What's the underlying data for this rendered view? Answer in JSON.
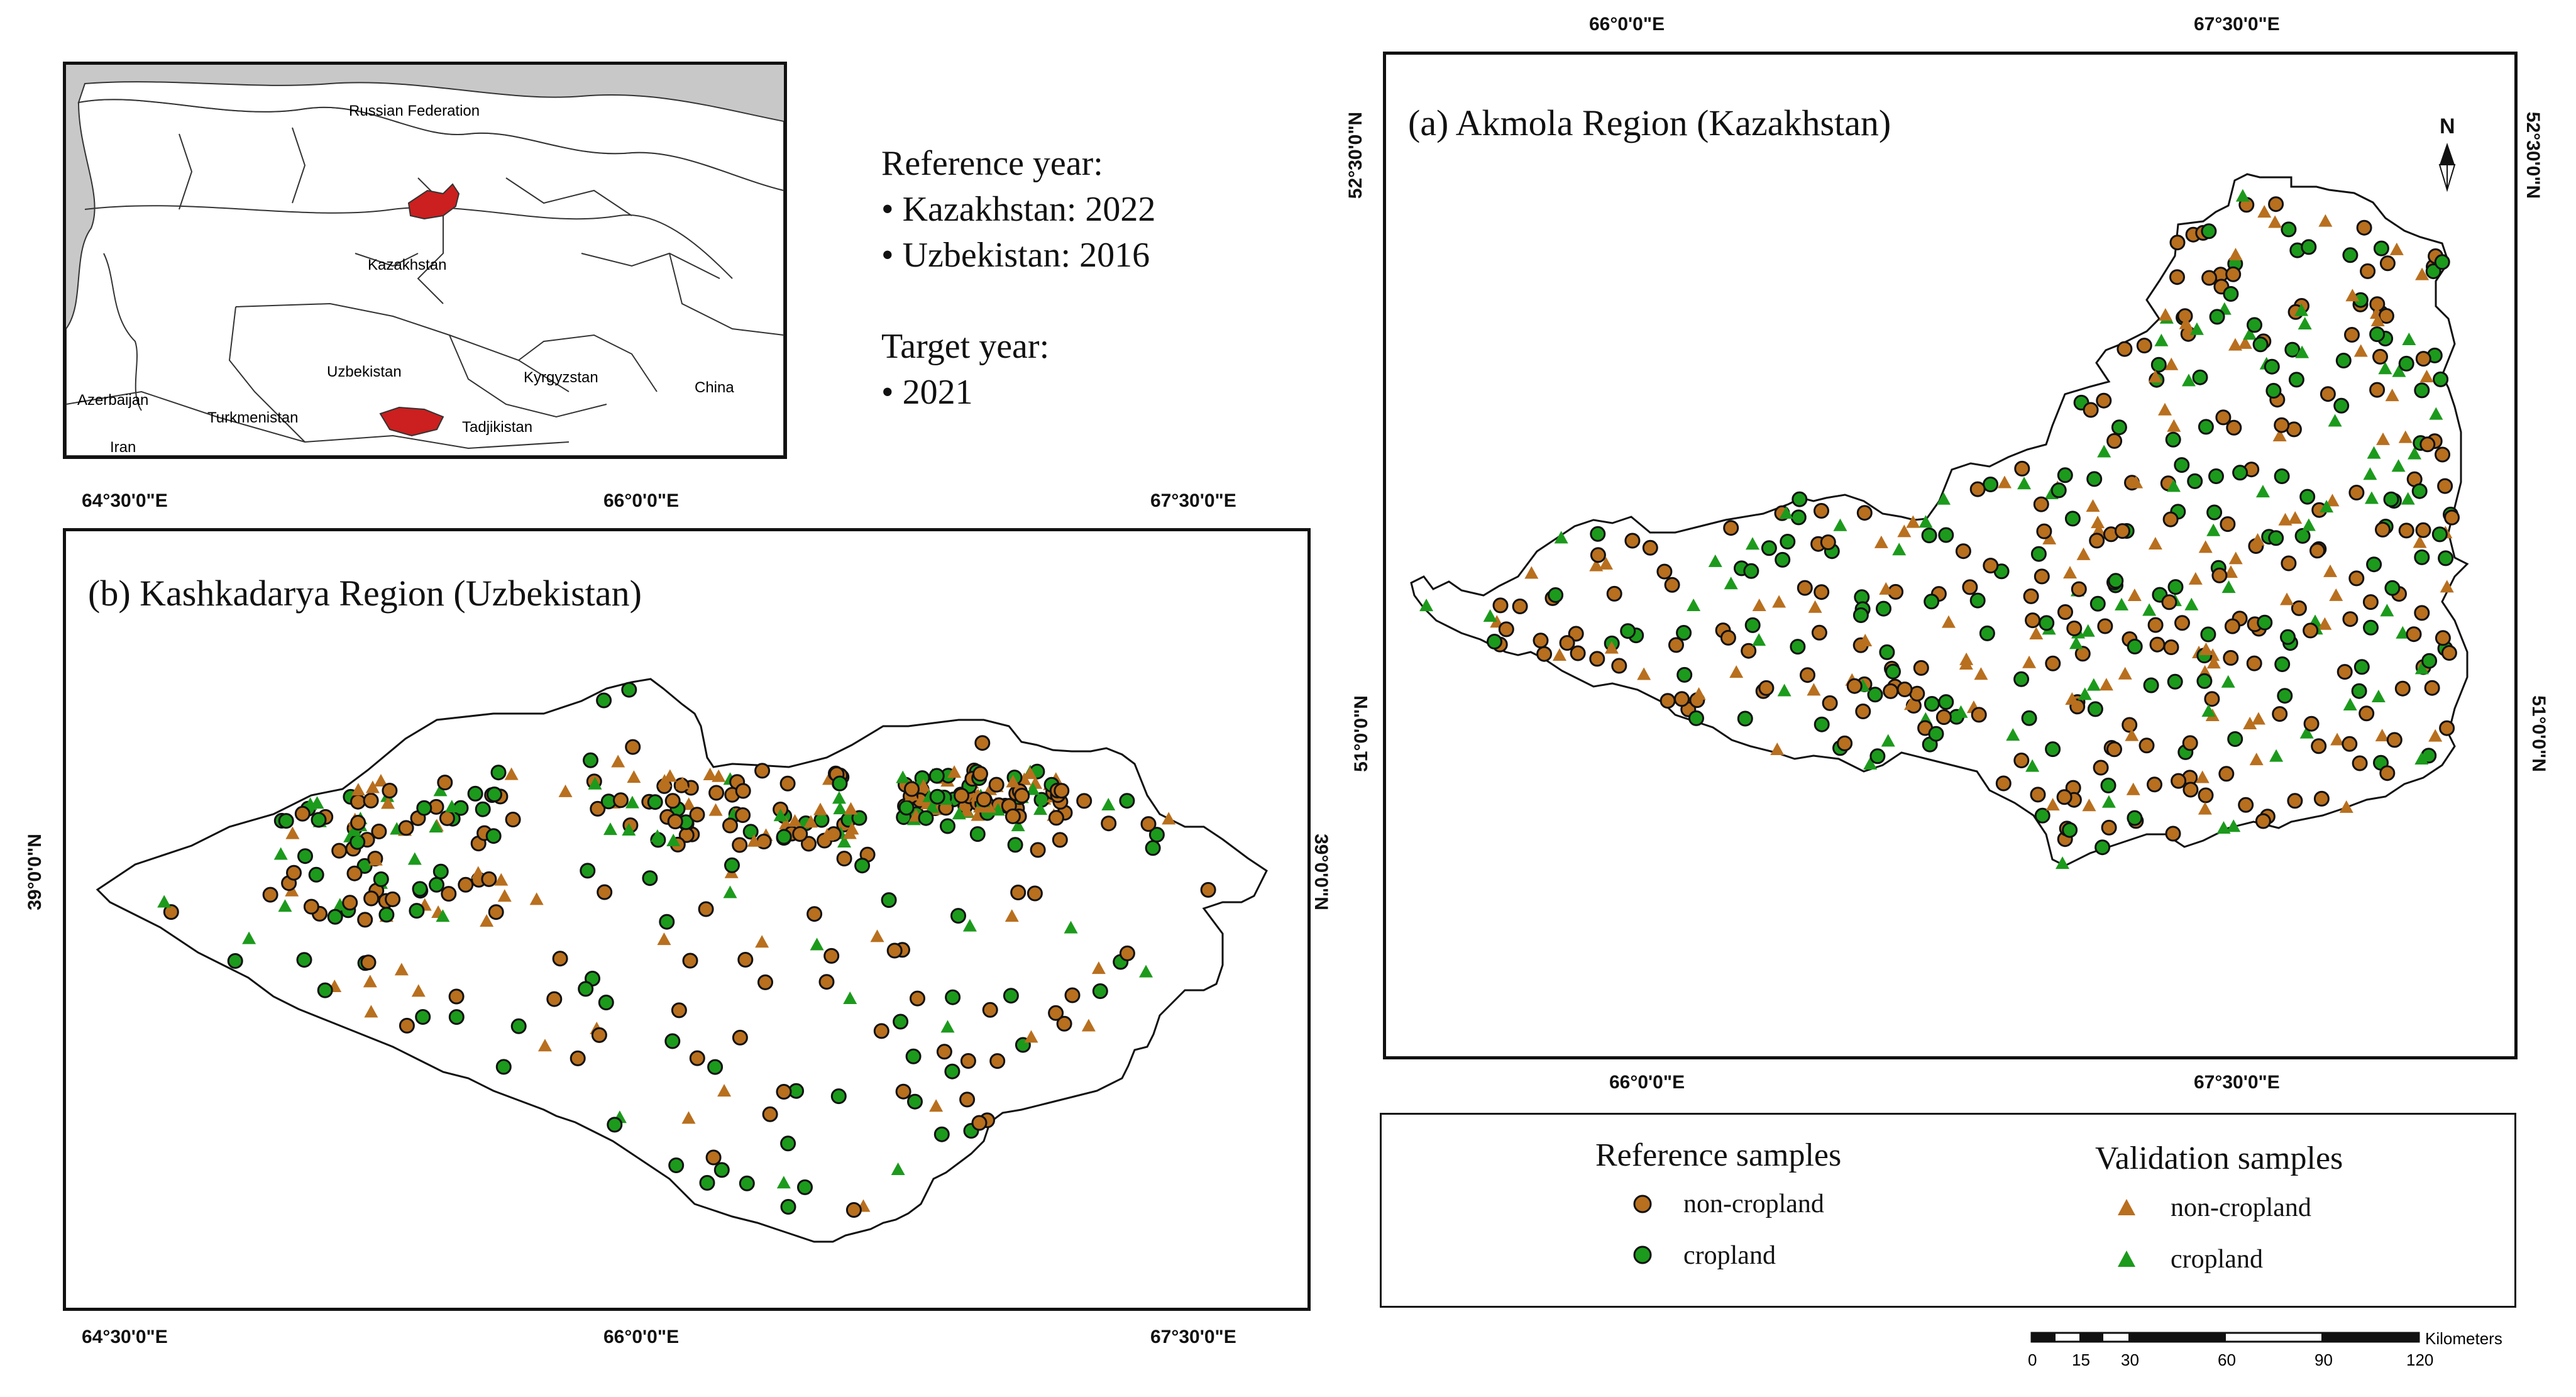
{
  "colors": {
    "non_cropland": "#b86f1e",
    "cropland": "#1c9a1c",
    "highlight": "#cc1f1f"
  },
  "inset": {
    "countries": [
      "Russian Federation",
      "Kazakhstan",
      "Uzbekistan",
      "Kyrgyzstan",
      "Azerbaijan",
      "Turkmenistan",
      "China",
      "Iran",
      "Tadjikistan"
    ]
  },
  "years": {
    "reference_title": "Reference year:",
    "kazakhstan": "• Kazakhstan: 2022",
    "uzbekistan": "• Uzbekistan: 2016",
    "target_title": "Target year:",
    "target": "• 2021"
  },
  "map_a": {
    "title": "(a) Akmola Region (Kazakhstan)",
    "lon_ticks": [
      "66°0'0\"E",
      "67°30'0\"E"
    ],
    "lat_ticks": [
      "52°30'0\"N",
      "51°0'0\"N"
    ],
    "north_label": "N"
  },
  "map_b": {
    "title": "(b) Kashkadarya Region (Uzbekistan)",
    "lon_ticks": [
      "64°30'0\"E",
      "66°0'0\"E",
      "67°30'0\"E"
    ],
    "lat_ticks": [
      "39°0'0\"N"
    ]
  },
  "legend": {
    "reference_title": "Reference samples",
    "validation_title": "Validation samples",
    "non_cropland": "non-cropland",
    "cropland": "cropland"
  },
  "scale_bar": {
    "unit": "Kilometers",
    "labels": [
      "0",
      "15",
      "30",
      "60",
      "90",
      "120"
    ]
  }
}
